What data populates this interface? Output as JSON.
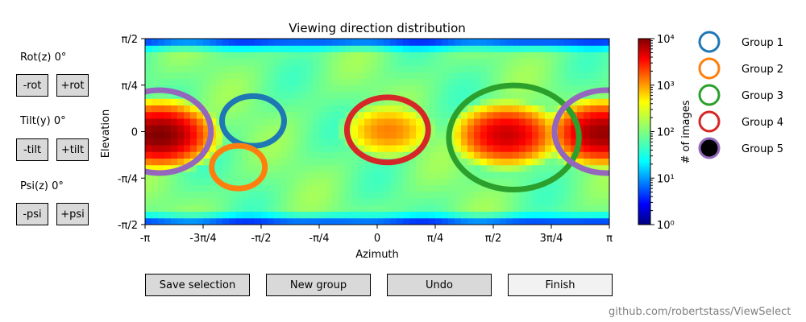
{
  "controls": {
    "rot_label": "Rot(z) 0°",
    "rot_minus": "-rot",
    "rot_plus": "+rot",
    "tilt_label": "Tilt(y) 0°",
    "tilt_minus": "-tilt",
    "tilt_plus": "+tilt",
    "psi_label": "Psi(z) 0°",
    "psi_minus": "-psi",
    "psi_plus": "+psi"
  },
  "actions": {
    "save": "Save selection",
    "new_group": "New group",
    "undo": "Undo",
    "finish": "Finish"
  },
  "credit": "github.com/robertstass/ViewSelect",
  "chart_data": {
    "type": "heatmap",
    "title": "Viewing direction distribution",
    "xlabel": "Azimuth",
    "ylabel": "Elevation",
    "xlim": [
      -3.14159,
      3.14159
    ],
    "ylim": [
      -1.5708,
      1.5708
    ],
    "xticks": [
      "-π",
      "-3π/4",
      "-π/2",
      "-π/4",
      "0",
      "π/4",
      "π/2",
      "3π/4",
      "π"
    ],
    "yticks": [
      "π/2",
      "π/4",
      "0",
      "-π/4",
      "-π/2"
    ],
    "colorbar": {
      "label": "# of images",
      "scale": "log",
      "range": [
        1,
        10000
      ],
      "ticks": [
        "10⁴",
        "10³",
        "10²",
        "10¹",
        "10⁰"
      ],
      "colormap": "jet"
    },
    "density_peaks": [
      {
        "azimuth": -2.95,
        "elevation": -0.05,
        "peak_count": 10000
      },
      {
        "azimuth": 0.15,
        "elevation": 0.02,
        "peak_count": 1000
      },
      {
        "azimuth": 1.75,
        "elevation": -0.05,
        "peak_count": 5000
      },
      {
        "azimuth": 3.05,
        "elevation": -0.02,
        "peak_count": 8000
      }
    ],
    "groups": [
      {
        "name": "Group 1",
        "color": "#1f77b4",
        "filled": false,
        "circles": [
          {
            "azimuth": -1.68,
            "elevation": 0.18,
            "radius": 0.42
          }
        ]
      },
      {
        "name": "Group 2",
        "color": "#ff7f0e",
        "filled": false,
        "circles": [
          {
            "azimuth": -1.88,
            "elevation": -0.6,
            "radius": 0.36
          }
        ]
      },
      {
        "name": "Group 3",
        "color": "#2ca02c",
        "filled": false,
        "circles": [
          {
            "azimuth": 1.85,
            "elevation": -0.1,
            "radius": 0.88
          }
        ]
      },
      {
        "name": "Group 4",
        "color": "#d62728",
        "filled": false,
        "circles": [
          {
            "azimuth": 0.14,
            "elevation": 0.03,
            "radius": 0.55
          }
        ]
      },
      {
        "name": "Group 5",
        "color": "#9467bd",
        "fill": "#000000",
        "filled": true,
        "circles": [
          {
            "azimuth": -2.95,
            "elevation": 0.0,
            "radius": 0.7
          },
          {
            "azimuth": 3.1,
            "elevation": 0.0,
            "radius": 0.7
          }
        ]
      }
    ]
  }
}
